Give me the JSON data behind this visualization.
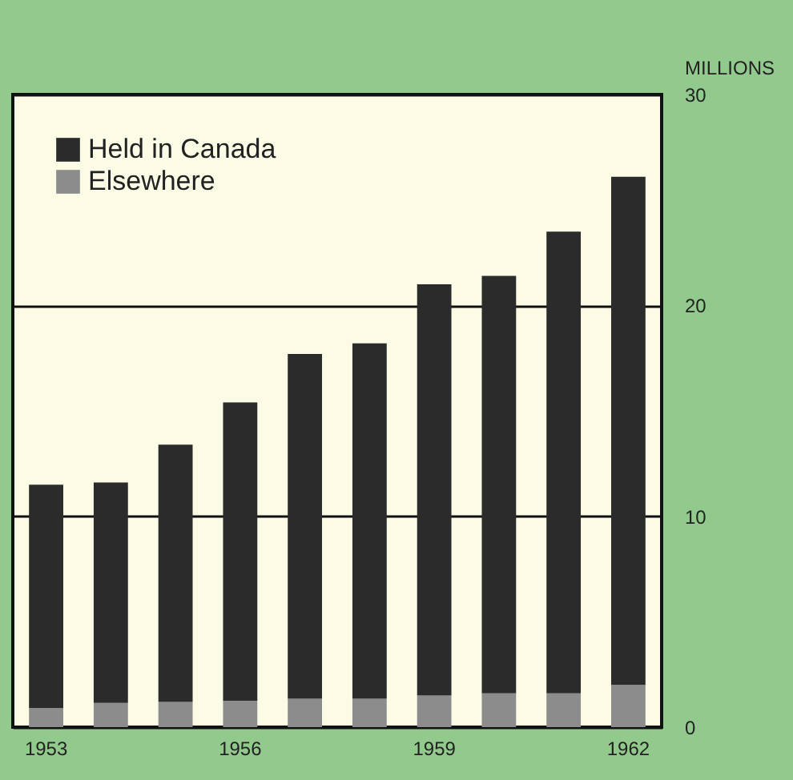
{
  "chart_data": {
    "type": "bar",
    "stacked": true,
    "ylabel": "MILLIONS",
    "categories": [
      "1953",
      null,
      null,
      "1956",
      null,
      null,
      "1959",
      null,
      null,
      "1962"
    ],
    "series": [
      {
        "name": "Elsewhere",
        "color": "#8c8c8c",
        "values": [
          0.9,
          1.15,
          1.2,
          1.25,
          1.35,
          1.35,
          1.5,
          1.6,
          1.6,
          2.0
        ]
      },
      {
        "name": "Held in Canada",
        "color": "#2b2b2b",
        "values": [
          10.6,
          10.45,
          12.2,
          14.15,
          16.35,
          16.85,
          19.5,
          19.8,
          21.9,
          24.1
        ]
      }
    ],
    "ylim": [
      0,
      30
    ],
    "yticks": [
      0,
      10,
      20,
      30
    ],
    "grid": "y",
    "legend": "top left"
  }
}
